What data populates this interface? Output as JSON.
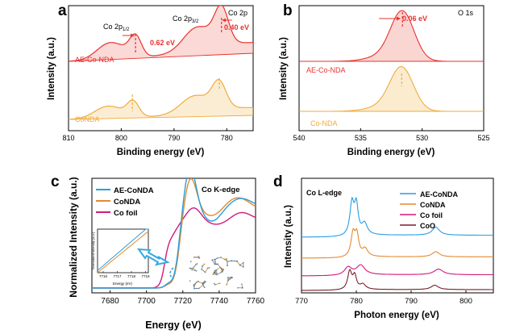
{
  "figure_colors": {
    "ae": "#e8322f",
    "co": "#efab3c",
    "ae_fill": "#f6b4ae",
    "co_fill": "#f8dca9",
    "xas_ae": "#2a9ee0",
    "xas_co": "#e68a2e",
    "xas_foil": "#d3197b",
    "l_ae": "#2a9ee0",
    "l_co": "#e68a2e",
    "l_foil": "#d3197b",
    "l_coo": "#7a1f2a",
    "arrow": "#35a9e0"
  },
  "chart_data": [
    {
      "type": "line",
      "panel": "a",
      "panel_letter": "a",
      "corner_label": "Co 2p",
      "xlabel": "Binding energy (eV)",
      "ylabel": "Intensity (a.u.)",
      "xlim": [
        810,
        775
      ],
      "x_ticks": [
        810,
        800,
        790,
        780
      ],
      "x_tick_labels": [
        "810",
        "800",
        "790",
        "780"
      ],
      "y_ticks": false,
      "grid": false,
      "labels": {
        "peak_left": "Co 2p",
        "peak_left_sub": "1/2",
        "peak_right": "Co 2p",
        "peak_right_sub": "3/2",
        "shift_left": "0.62 eV",
        "shift_right": "0.40 eV"
      },
      "series": [
        {
          "name": "AE-Co-NDA",
          "color_key": "ae",
          "peak_positions": [
            797.3,
            781.0
          ]
        },
        {
          "name": "CoNDA",
          "color_key": "co",
          "peak_positions": [
            797.9,
            781.4
          ]
        }
      ]
    },
    {
      "type": "line",
      "panel": "b",
      "panel_letter": "b",
      "corner_label": "O 1s",
      "xlabel": "Binding energy (eV)",
      "ylabel": "Intensity (a.u.)",
      "xlim": [
        540,
        525
      ],
      "x_ticks": [
        540,
        535,
        530,
        525
      ],
      "x_tick_labels": [
        "540",
        "535",
        "530",
        "525"
      ],
      "y_ticks": false,
      "grid": false,
      "labels": {
        "shift": "0.06 eV"
      },
      "series": [
        {
          "name": "AE-Co-NDA",
          "color_key": "ae",
          "peak_positions": [
            531.6
          ]
        },
        {
          "name": "Co-NDA",
          "color_key": "co",
          "peak_positions": [
            531.66
          ]
        }
      ]
    },
    {
      "type": "line",
      "panel": "c",
      "panel_letter": "c",
      "corner_label": "Co K-edge",
      "xlabel": "Energy (eV)",
      "ylabel": "Normalized Intensity (a.u.)",
      "xlim": [
        7670,
        7760
      ],
      "x_ticks": [
        7680,
        7700,
        7720,
        7740,
        7760
      ],
      "x_tick_labels": [
        "7680",
        "7700",
        "7720",
        "7740",
        "7760"
      ],
      "y_ticks": false,
      "grid": false,
      "legend_position": "top-left",
      "series": [
        {
          "name": "AE-CoNDA",
          "color_key": "xas_ae",
          "peak_positions": [
            7724
          ]
        },
        {
          "name": "CoNDA",
          "color_key": "xas_co",
          "peak_positions": [
            7724
          ]
        },
        {
          "name": "Co foil",
          "color_key": "xas_foil",
          "peak_positions": [
            7712
          ]
        }
      ],
      "inset": {
        "xlabel": "Energy (eV)",
        "ylabel": "Normalized intensity (a.u.)",
        "xlim": [
          7715.6,
          7719.2
        ],
        "x_ticks": [
          7716,
          7717,
          7718,
          7719
        ],
        "x_tick_labels": [
          "7716",
          "7717",
          "7718",
          "7719"
        ]
      }
    },
    {
      "type": "line",
      "panel": "d",
      "panel_letter": "d",
      "corner_label": "Co L-edge",
      "xlabel": "Photon energy (eV)",
      "ylabel": "Intensity (a.u.)",
      "xlim": [
        770,
        805
      ],
      "x_ticks": [
        770,
        780,
        790,
        800
      ],
      "x_tick_labels": [
        "770",
        "780",
        "790",
        "800"
      ],
      "y_ticks": false,
      "grid": false,
      "legend_position": "top-right",
      "series": [
        {
          "name": "AE-CoNDA",
          "color_key": "l_ae",
          "peak_positions": [
            779.2,
            794.5
          ]
        },
        {
          "name": "CoNDA",
          "color_key": "l_co",
          "peak_positions": [
            779.4,
            794.5
          ]
        },
        {
          "name": "Co foil",
          "color_key": "l_foil",
          "peak_positions": [
            778.5,
            781,
            795
          ]
        },
        {
          "name": "CoO",
          "color_key": "l_coo",
          "peak_positions": [
            778.8,
            794.3
          ]
        }
      ]
    }
  ]
}
